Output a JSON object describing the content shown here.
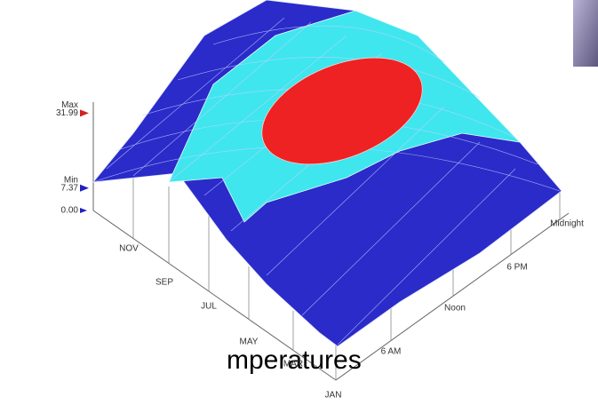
{
  "chart_data": {
    "type": "surface",
    "title": "mperatures",
    "months": [
      "NOV",
      "SEP",
      "JUL",
      "MAY",
      "MAR",
      "JAN"
    ],
    "times": [
      "6 AM",
      "Noon",
      "6 PM",
      "Midnight"
    ],
    "zlim": [
      0,
      35
    ],
    "markers": [
      {
        "name": "Max",
        "value": 31.99,
        "color": "#d42020"
      },
      {
        "name": "Min",
        "value": 7.37,
        "color": "#2020c0"
      }
    ],
    "zticks": [
      {
        "value": 0,
        "label": "0.00"
      }
    ]
  }
}
